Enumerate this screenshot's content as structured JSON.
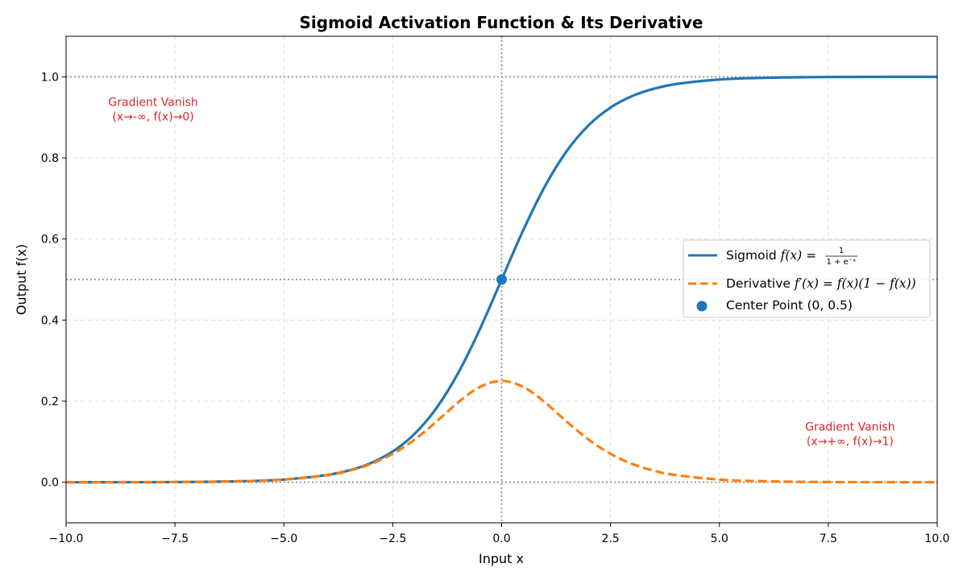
{
  "chart_data": {
    "type": "line",
    "title": "Sigmoid Activation Function & Its Derivative",
    "xlabel": "Input x",
    "ylabel": "Output f(x)",
    "xlim": [
      -10,
      10
    ],
    "ylim": [
      -0.1,
      1.1
    ],
    "xticks": [
      -10,
      -7.5,
      -5,
      -2.5,
      0,
      2.5,
      5,
      7.5,
      10
    ],
    "xtick_labels": [
      "−10.0",
      "−7.5",
      "−5.0",
      "−2.5",
      "0.0",
      "2.5",
      "5.0",
      "7.5",
      "10.0"
    ],
    "yticks": [
      0.0,
      0.2,
      0.4,
      0.6,
      0.8,
      1.0
    ],
    "ytick_labels": [
      "0.0",
      "0.2",
      "0.4",
      "0.6",
      "0.8",
      "1.0"
    ],
    "grid": true,
    "legend_position": "center-right",
    "reference_lines": {
      "horizontal": [
        0,
        0.5,
        1
      ],
      "vertical": [
        0
      ]
    },
    "x": [
      -10,
      -9,
      -8,
      -7,
      -6,
      -5,
      -4,
      -3.5,
      -3,
      -2.5,
      -2,
      -1.5,
      -1,
      -0.5,
      0,
      0.5,
      1,
      1.5,
      2,
      2.5,
      3,
      3.5,
      4,
      5,
      6,
      7,
      8,
      9,
      10
    ],
    "series": [
      {
        "name": "Sigmoid f(x) = 1/(1+e⁻ˣ)",
        "style": "solid",
        "color": "#1f77b4",
        "values": [
          0.0,
          0.0001,
          0.0003,
          0.0009,
          0.0025,
          0.0067,
          0.018,
          0.0293,
          0.0474,
          0.0759,
          0.1192,
          0.1824,
          0.2689,
          0.3775,
          0.5,
          0.6225,
          0.7311,
          0.8176,
          0.8808,
          0.9241,
          0.9526,
          0.9707,
          0.982,
          0.9933,
          0.9975,
          0.9991,
          0.9997,
          0.9999,
          1.0
        ]
      },
      {
        "name": "Derivative f′(x) = f(x)(1 − f(x))",
        "style": "dashed",
        "color": "#ff7f0e",
        "values": [
          0.0,
          0.0001,
          0.0003,
          0.0009,
          0.0025,
          0.0066,
          0.0177,
          0.0285,
          0.0452,
          0.0701,
          0.105,
          0.1491,
          0.1966,
          0.235,
          0.25,
          0.235,
          0.1966,
          0.1491,
          0.105,
          0.0701,
          0.0452,
          0.0285,
          0.0177,
          0.0066,
          0.0025,
          0.0009,
          0.0003,
          0.0001,
          0.0
        ]
      }
    ],
    "points": [
      {
        "name": "Center Point (0, 0.5)",
        "x": 0,
        "y": 0.5,
        "color": "#1f77b4"
      }
    ],
    "annotations": [
      {
        "lines": [
          "Gradient Vanish",
          "(x→-∞, f(x)→0)"
        ],
        "x": -8,
        "y": 0.92,
        "color": "#d62728"
      },
      {
        "lines": [
          "Gradient Vanish",
          "(x→+∞, f(x)→1)"
        ],
        "x": 8,
        "y": 0.12,
        "color": "#d62728"
      }
    ],
    "legend": {
      "sigmoid_prefix": "Sigmoid ",
      "sigmoid_fn": "f(x)",
      "sigmoid_eq": " = ",
      "sigmoid_frac_num": "1",
      "sigmoid_frac_den": "1 + e⁻ˣ",
      "derivative_prefix": "Derivative ",
      "derivative_fn": "f′(x)",
      "derivative_eq": " = ",
      "derivative_rhs": "f(x)(1 − f(x))",
      "center_label": "Center Point (0, 0.5)"
    }
  }
}
